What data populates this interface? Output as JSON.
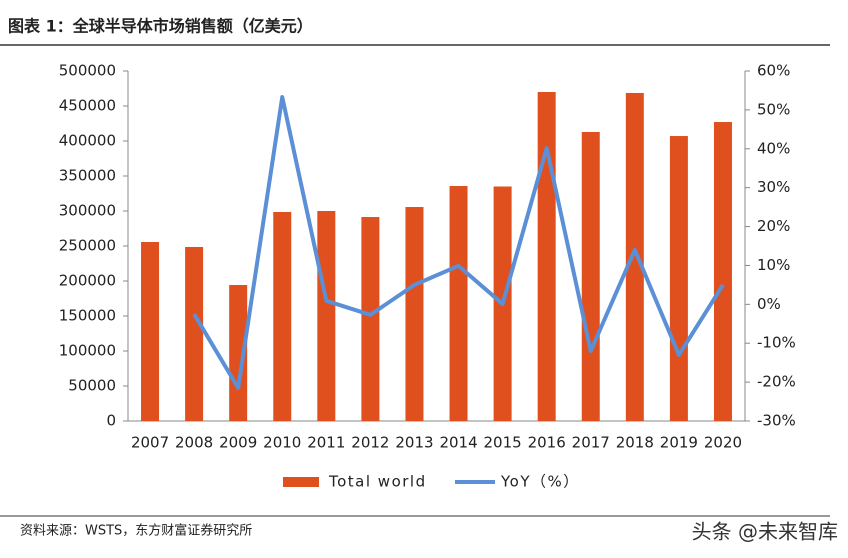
{
  "chart_data": {
    "type": "bar_line",
    "title": "图表 1：全球半导体市场销售额（亿美元）",
    "categories": [
      "2007",
      "2008",
      "2009",
      "2010",
      "2011",
      "2012",
      "2013",
      "2014",
      "2015",
      "2016",
      "2017",
      "2018",
      "2019",
      "2020"
    ],
    "series": [
      {
        "name": "Total world",
        "type": "bar",
        "color": "#e0501e",
        "values": [
          255700,
          248600,
          194300,
          298600,
          300000,
          291400,
          305700,
          335700,
          335000,
          470000,
          412900,
          468600,
          407100,
          427100
        ]
      },
      {
        "name": "YoY（%）",
        "type": "line",
        "axis": "y2",
        "color": "#5b8fd6",
        "values": [
          null,
          -2.5,
          -21.5,
          53.3,
          0.9,
          -2.7,
          5,
          9.9,
          0.1,
          40.2,
          -12,
          14,
          -13,
          5
        ]
      }
    ],
    "ylim": [
      0,
      500000
    ],
    "yticks": [
      0,
      50000,
      100000,
      150000,
      200000,
      250000,
      300000,
      350000,
      400000,
      450000,
      500000
    ],
    "y2lim": [
      -30,
      60
    ],
    "y2ticks": [
      {
        "value": -30,
        "label": "-30%"
      },
      {
        "value": -20,
        "label": "-20%"
      },
      {
        "value": -10,
        "label": "-10%"
      },
      {
        "value": 0,
        "label": "0%"
      },
      {
        "value": 10,
        "label": "10%"
      },
      {
        "value": 20,
        "label": "20%"
      },
      {
        "value": 30,
        "label": "30%"
      },
      {
        "value": 40,
        "label": "40%"
      },
      {
        "value": 50,
        "label": "50%"
      },
      {
        "value": 60,
        "label": "60%"
      }
    ],
    "source": "资料来源：WSTS，东方财富证券研究所",
    "watermark": "头条 @未来智库"
  }
}
